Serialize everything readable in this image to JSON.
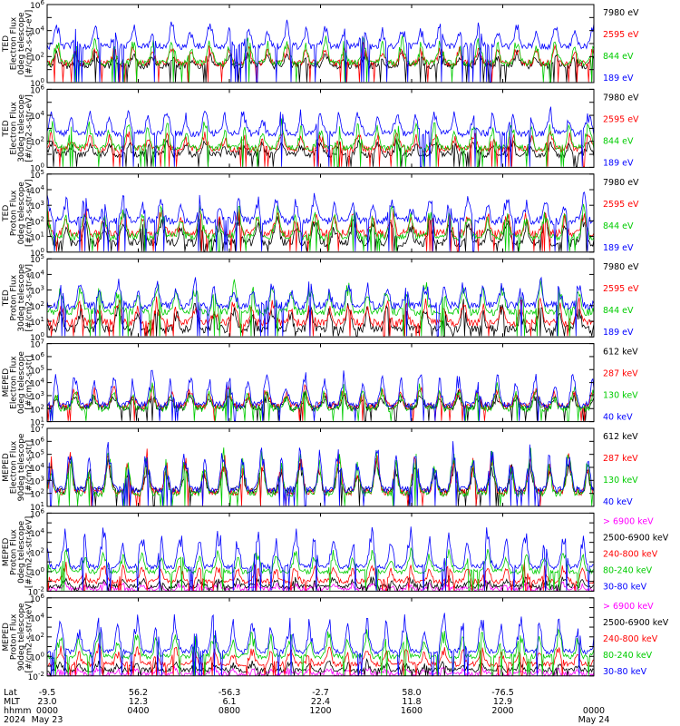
{
  "chart_data": {
    "type": "line",
    "x_range_hours": [
      0,
      24
    ],
    "panels": [
      {
        "ylabel": [
          "TED",
          "Electron Flux",
          "0deg telescope",
          "[#/cm2-s-str-eV]"
        ],
        "yscale": "log",
        "ylim_exp": [
          0,
          6
        ],
        "tick_exps": [
          0,
          2,
          4,
          6
        ],
        "series": [
          {
            "name": "7980 eV",
            "color": "#000000",
            "base": 1.3,
            "amp": 0.9
          },
          {
            "name": "2595 eV",
            "color": "#ff0000",
            "base": 1.5,
            "amp": 1.3
          },
          {
            "name": "844 eV",
            "color": "#00cc00",
            "base": 1.5,
            "amp": 1.8
          },
          {
            "name": "189 eV",
            "color": "#0000ff",
            "base": 2.8,
            "amp": 1.6
          }
        ]
      },
      {
        "ylabel": [
          "TED",
          "Electron Flux",
          "30deg telescope",
          "[#/cm2-s-str-eV]"
        ],
        "yscale": "log",
        "ylim_exp": [
          0,
          6
        ],
        "tick_exps": [
          0,
          2,
          4,
          6
        ],
        "series": [
          {
            "name": "7980 eV",
            "color": "#000000",
            "base": 1.0,
            "amp": 1.0
          },
          {
            "name": "2595 eV",
            "color": "#ff0000",
            "base": 1.4,
            "amp": 1.2
          },
          {
            "name": "844 eV",
            "color": "#00cc00",
            "base": 1.5,
            "amp": 1.9
          },
          {
            "name": "189 eV",
            "color": "#0000ff",
            "base": 2.6,
            "amp": 1.8
          }
        ]
      },
      {
        "ylabel": [
          "TED",
          "Proton Flux",
          "0deg telescope",
          "[#/cm2-s-str-eV]"
        ],
        "yscale": "log",
        "ylim_exp": [
          0,
          5
        ],
        "tick_exps": [
          0,
          1,
          2,
          3,
          4,
          5
        ],
        "series": [
          {
            "name": "7980 eV",
            "color": "#000000",
            "base": 0.6,
            "amp": 1.6
          },
          {
            "name": "2595 eV",
            "color": "#ff0000",
            "base": 1.2,
            "amp": 1.4
          },
          {
            "name": "844 eV",
            "color": "#00cc00",
            "base": 1.0,
            "amp": 1.8
          },
          {
            "name": "189 eV",
            "color": "#0000ff",
            "base": 2.0,
            "amp": 1.6
          }
        ]
      },
      {
        "ylabel": [
          "TED",
          "Proton Flux",
          "30deg telescope",
          "[#/cm2-s-str-eV]"
        ],
        "yscale": "log",
        "ylim_exp": [
          0,
          5
        ],
        "tick_exps": [
          0,
          1,
          2,
          3,
          4,
          5
        ],
        "series": [
          {
            "name": "7980 eV",
            "color": "#000000",
            "base": 0.5,
            "amp": 1.5
          },
          {
            "name": "2595 eV",
            "color": "#ff0000",
            "base": 0.9,
            "amp": 1.4
          },
          {
            "name": "844 eV",
            "color": "#00cc00",
            "base": 1.6,
            "amp": 1.8
          },
          {
            "name": "189 eV",
            "color": "#0000ff",
            "base": 2.0,
            "amp": 1.5
          }
        ]
      },
      {
        "ylabel": [
          "MEPED",
          "Electron Flux",
          "0deg telescope",
          "[#/cm2-s-str]"
        ],
        "yscale": "log",
        "ylim_exp": [
          1,
          7
        ],
        "tick_exps": [
          1,
          2,
          3,
          4,
          5,
          6,
          7
        ],
        "series": [
          {
            "name": "612 keV",
            "color": "#000000",
            "base": 2.1,
            "amp": 1.0
          },
          {
            "name": "287 keV",
            "color": "#ff0000",
            "base": 2.2,
            "amp": 1.4
          },
          {
            "name": "130 keV",
            "color": "#00cc00",
            "base": 2.0,
            "amp": 1.6
          },
          {
            "name": "40 keV",
            "color": "#0000ff",
            "base": 2.3,
            "amp": 2.4
          }
        ]
      },
      {
        "ylabel": [
          "MEPED",
          "Electron Flux",
          "90deg telescope",
          "[#/cm2-s-str]"
        ],
        "yscale": "log",
        "ylim_exp": [
          1,
          7
        ],
        "tick_exps": [
          1,
          2,
          3,
          4,
          5,
          6,
          7
        ],
        "series": [
          {
            "name": "612 keV",
            "color": "#000000",
            "base": 2.2,
            "amp": 2.2
          },
          {
            "name": "287 keV",
            "color": "#ff0000",
            "base": 2.1,
            "amp": 2.8
          },
          {
            "name": "130 keV",
            "color": "#00cc00",
            "base": 2.0,
            "amp": 3.0
          },
          {
            "name": "40 keV",
            "color": "#0000ff",
            "base": 2.3,
            "amp": 3.2
          }
        ]
      },
      {
        "ylabel": [
          "MEPED",
          "Proton Flux",
          "0deg telescope",
          "[#/cm2-s-str-keV]"
        ],
        "yscale": "log",
        "ylim_exp": [
          -2,
          6
        ],
        "tick_exps": [
          -2,
          0,
          2,
          4,
          6
        ],
        "series": [
          {
            "name": "> 6900 keV",
            "color": "#ff00ff",
            "base": -1.8,
            "amp": 0.6
          },
          {
            "name": "2500-6900 keV",
            "color": "#000000",
            "base": -1.5,
            "amp": 0.8
          },
          {
            "name": "240-800 keV",
            "color": "#ff0000",
            "base": -1.0,
            "amp": 1.8
          },
          {
            "name": "80-240 keV",
            "color": "#00cc00",
            "base": 0.0,
            "amp": 2.2
          },
          {
            "name": "30-80 keV",
            "color": "#0000ff",
            "base": 0.5,
            "amp": 3.8
          }
        ]
      },
      {
        "ylabel": [
          "MEPED",
          "Proton Flux",
          "90deg telescope",
          "[#/cm2-s-str-keV]"
        ],
        "yscale": "log",
        "ylim_exp": [
          -2,
          6
        ],
        "tick_exps": [
          -2,
          0,
          2,
          4,
          6
        ],
        "series": [
          {
            "name": "> 6900 keV",
            "color": "#ff00ff",
            "base": -1.8,
            "amp": 0.6
          },
          {
            "name": "2500-6900 keV",
            "color": "#000000",
            "base": -1.4,
            "amp": 0.8
          },
          {
            "name": "240-800 keV",
            "color": "#ff0000",
            "base": -0.8,
            "amp": 1.8
          },
          {
            "name": "80-240 keV",
            "color": "#00cc00",
            "base": 0.0,
            "amp": 2.4
          },
          {
            "name": "30-80 keV",
            "color": "#0000ff",
            "base": 0.5,
            "amp": 3.6
          }
        ]
      }
    ],
    "time_axis": {
      "row_labels": [
        "Lat",
        "MLT",
        "hhmm",
        "2024"
      ],
      "ticks": [
        {
          "hours": 0,
          "lat": "-9.5",
          "mlt": "23.0",
          "hhmm": "0000",
          "date": "May 23"
        },
        {
          "hours": 4,
          "lat": "56.2",
          "mlt": "12.3",
          "hhmm": "0400",
          "date": ""
        },
        {
          "hours": 8,
          "lat": "-56.3",
          "mlt": "6.1",
          "hhmm": "0800",
          "date": ""
        },
        {
          "hours": 12,
          "lat": "-2.7",
          "mlt": "22.4",
          "hhmm": "1200",
          "date": ""
        },
        {
          "hours": 16,
          "lat": "58.0",
          "mlt": "11.8",
          "hhmm": "1600",
          "date": ""
        },
        {
          "hours": 20,
          "lat": "-76.5",
          "mlt": "12.9",
          "hhmm": "2000",
          "date": ""
        },
        {
          "hours": 24,
          "lat": "",
          "mlt": "",
          "hhmm": "0000",
          "date": "May 24"
        }
      ]
    }
  }
}
